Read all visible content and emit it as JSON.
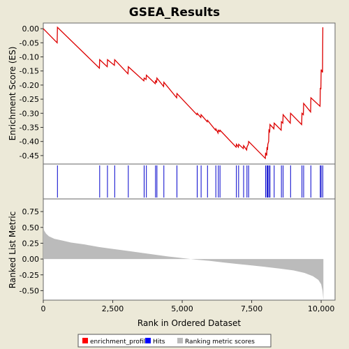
{
  "chart_data": {
    "type": "line",
    "title": "GSEA_Results",
    "xlabel": "Rank in Ordered Dataset",
    "top_ylabel": "Enrichment Score (ES)",
    "bottom_ylabel": "Ranked List Metric",
    "xlim": [
      0,
      10500
    ],
    "x_ticks": [
      0,
      2500,
      5000,
      7500,
      10000
    ],
    "x_tick_labels": [
      "0",
      "2,500",
      "5,000",
      "7,500",
      "10,000"
    ],
    "es_ylim": [
      -0.48,
      0.02
    ],
    "es_ticks": [
      0.0,
      -0.05,
      -0.1,
      -0.15,
      -0.2,
      -0.25,
      -0.3,
      -0.35,
      -0.4,
      -0.45
    ],
    "es_tick_labels": [
      "0.00",
      "-0.05",
      "-0.10",
      "-0.15",
      "-0.20",
      "-0.25",
      "-0.30",
      "-0.35",
      "-0.40",
      "-0.45"
    ],
    "metric_ylim": [
      -0.65,
      0.95
    ],
    "metric_ticks": [
      0.75,
      0.5,
      0.25,
      0.0,
      -0.25,
      -0.5
    ],
    "metric_tick_labels": [
      "0.75",
      "0.50",
      "0.25",
      "0.00",
      "-0.25",
      "-0.50"
    ],
    "series": [
      {
        "name": "enrichment_profile",
        "color": "#dd0000",
        "x": [
          0,
          500,
          510,
          2020,
          2030,
          2300,
          2310,
          2560,
          2570,
          3050,
          3060,
          3620,
          3630,
          3700,
          3710,
          4030,
          4040,
          4080,
          4090,
          4330,
          4340,
          4800,
          4810,
          5530,
          5540,
          5670,
          5680,
          5900,
          5910,
          6200,
          6210,
          6290,
          6300,
          6350,
          6360,
          6940,
          6950,
          7020,
          7030,
          7200,
          7210,
          7320,
          7330,
          7380,
          7390,
          7990,
          8000,
          8040,
          8050,
          8070,
          8080,
          8110,
          8120,
          8150,
          8160,
          8300,
          8310,
          8560,
          8570,
          8620,
          8630,
          8890,
          8900,
          9300,
          9310,
          9360,
          9370,
          9620,
          9630,
          9960,
          9970,
          9990,
          10000,
          10050,
          10060
        ],
        "y": [
          0.0,
          -0.05,
          0.005,
          -0.14,
          -0.11,
          -0.135,
          -0.11,
          -0.13,
          -0.11,
          -0.16,
          -0.135,
          -0.185,
          -0.175,
          -0.18,
          -0.165,
          -0.195,
          -0.185,
          -0.19,
          -0.175,
          -0.205,
          -0.19,
          -0.245,
          -0.23,
          -0.305,
          -0.3,
          -0.315,
          -0.305,
          -0.33,
          -0.325,
          -0.36,
          -0.355,
          -0.37,
          -0.36,
          -0.365,
          -0.36,
          -0.42,
          -0.41,
          -0.42,
          -0.41,
          -0.425,
          -0.415,
          -0.43,
          -0.42,
          -0.41,
          -0.4,
          -0.46,
          -0.44,
          -0.45,
          -0.42,
          -0.43,
          -0.41,
          -0.4,
          -0.36,
          -0.365,
          -0.34,
          -0.355,
          -0.335,
          -0.36,
          -0.33,
          -0.335,
          -0.305,
          -0.335,
          -0.3,
          -0.34,
          -0.3,
          -0.305,
          -0.265,
          -0.295,
          -0.245,
          -0.275,
          -0.21,
          -0.215,
          -0.145,
          -0.155,
          0.005
        ]
      },
      {
        "name": "Hits",
        "color": "#0000cc",
        "x": [
          510,
          2030,
          2310,
          2570,
          3060,
          3630,
          3710,
          4040,
          4090,
          4340,
          4810,
          5540,
          5680,
          5910,
          6210,
          6300,
          6360,
          6950,
          7030,
          7210,
          7330,
          7390,
          8000,
          8050,
          8080,
          8120,
          8160,
          8310,
          8570,
          8630,
          8900,
          9310,
          9370,
          9630,
          9970,
          10000,
          10060
        ]
      },
      {
        "name": "Ranking metric scores",
        "color": "#bbbbbb",
        "x": [
          0,
          30,
          100,
          200,
          400,
          700,
          1000,
          1500,
          2000,
          2500,
          3000,
          3500,
          4000,
          4500,
          5000,
          5500,
          6000,
          6500,
          7000,
          7500,
          8000,
          8500,
          9000,
          9400,
          9700,
          9900,
          10000,
          10050,
          10080
        ],
        "y": [
          0.55,
          0.45,
          0.4,
          0.36,
          0.32,
          0.29,
          0.26,
          0.23,
          0.19,
          0.16,
          0.13,
          0.1,
          0.07,
          0.04,
          0.015,
          -0.01,
          -0.03,
          -0.055,
          -0.08,
          -0.1,
          -0.125,
          -0.15,
          -0.18,
          -0.22,
          -0.27,
          -0.33,
          -0.4,
          -0.5,
          -0.65
        ]
      }
    ],
    "legend": {
      "placement": "bottom",
      "items": [
        {
          "label": "enrichment_profile",
          "color": "#ff0000"
        },
        {
          "label": "Hits",
          "color": "#0000ff"
        },
        {
          "label": "Ranking metric scores",
          "color": "#bbbbbb"
        }
      ]
    }
  }
}
